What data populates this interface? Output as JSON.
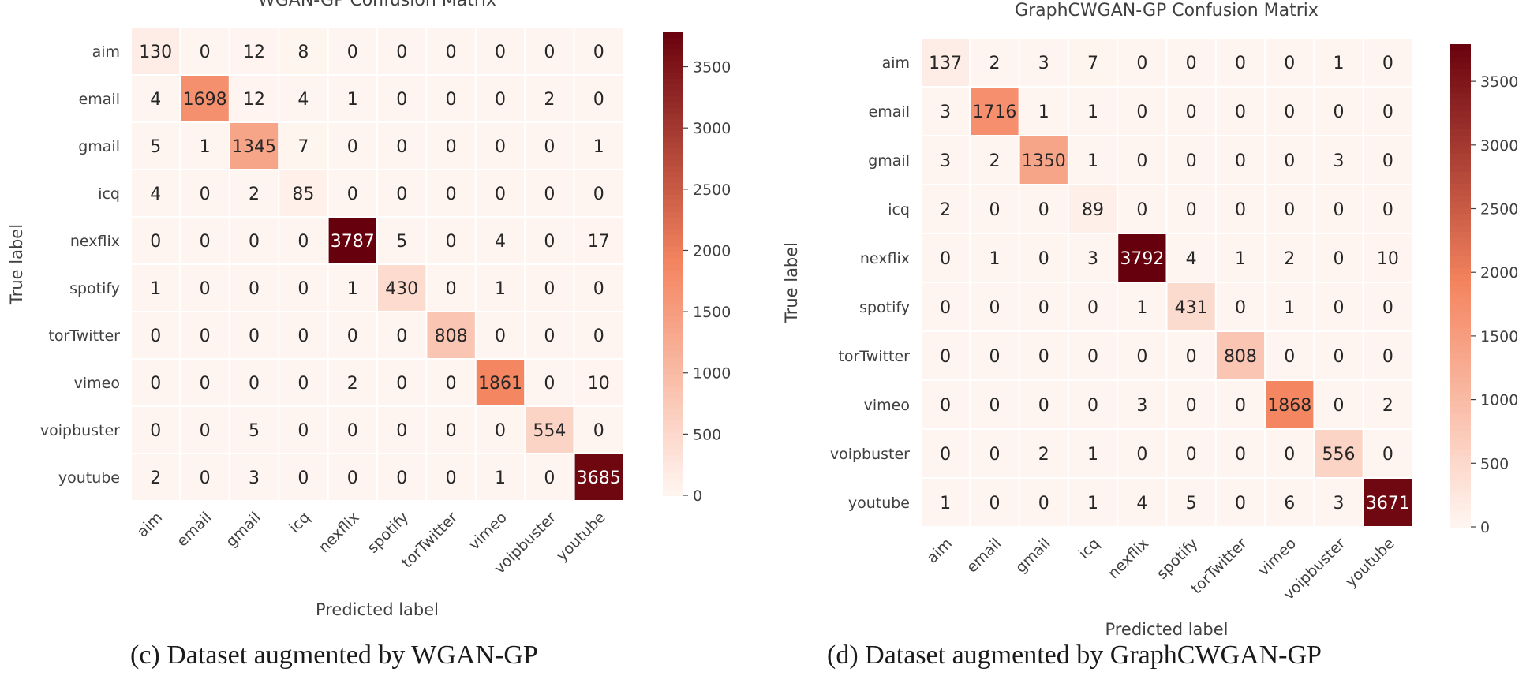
{
  "captions": {
    "left": "(c) Dataset augmented by WGAN-GP",
    "right": "(d) Dataset augmented by GraphCWGAN-GP"
  },
  "colormap": {
    "low": "#fff5f0",
    "mid": "#f4845f",
    "high": "#67000d"
  },
  "chart_data": [
    {
      "type": "heatmap",
      "title": "WGAN-GP Confusion Matrix",
      "xlabel": "Predicted label",
      "ylabel": "True label",
      "categories": [
        "aim",
        "email",
        "gmail",
        "icq",
        "nexflix",
        "spotify",
        "torTwitter",
        "vimeo",
        "voipbuster",
        "youtube"
      ],
      "matrix": [
        [
          130,
          0,
          12,
          8,
          0,
          0,
          0,
          0,
          0,
          0
        ],
        [
          4,
          1698,
          12,
          4,
          1,
          0,
          0,
          0,
          2,
          0
        ],
        [
          5,
          1,
          1345,
          7,
          0,
          0,
          0,
          0,
          0,
          1
        ],
        [
          4,
          0,
          2,
          85,
          0,
          0,
          0,
          0,
          0,
          0
        ],
        [
          0,
          0,
          0,
          0,
          3787,
          5,
          0,
          4,
          0,
          17
        ],
        [
          1,
          0,
          0,
          0,
          1,
          430,
          0,
          1,
          0,
          0
        ],
        [
          0,
          0,
          0,
          0,
          0,
          0,
          808,
          0,
          0,
          0
        ],
        [
          0,
          0,
          0,
          0,
          2,
          0,
          0,
          1861,
          0,
          10
        ],
        [
          0,
          0,
          5,
          0,
          0,
          0,
          0,
          0,
          554,
          0
        ],
        [
          2,
          0,
          3,
          0,
          0,
          0,
          0,
          1,
          0,
          3685
        ]
      ],
      "vmin": 0,
      "vmax": 3787,
      "colorbar_ticks": [
        0,
        500,
        1000,
        1500,
        2000,
        2500,
        3000,
        3500
      ]
    },
    {
      "type": "heatmap",
      "title": "GraphCWGAN-GP Confusion Matrix",
      "xlabel": "Predicted label",
      "ylabel": "True label",
      "categories": [
        "aim",
        "email",
        "gmail",
        "icq",
        "nexflix",
        "spotify",
        "torTwitter",
        "vimeo",
        "voipbuster",
        "youtube"
      ],
      "matrix": [
        [
          137,
          2,
          3,
          7,
          0,
          0,
          0,
          0,
          1,
          0
        ],
        [
          3,
          1716,
          1,
          1,
          0,
          0,
          0,
          0,
          0,
          0
        ],
        [
          3,
          2,
          1350,
          1,
          0,
          0,
          0,
          0,
          3,
          0
        ],
        [
          2,
          0,
          0,
          89,
          0,
          0,
          0,
          0,
          0,
          0
        ],
        [
          0,
          1,
          0,
          3,
          3792,
          4,
          1,
          2,
          0,
          10
        ],
        [
          0,
          0,
          0,
          0,
          1,
          431,
          0,
          1,
          0,
          0
        ],
        [
          0,
          0,
          0,
          0,
          0,
          0,
          808,
          0,
          0,
          0
        ],
        [
          0,
          0,
          0,
          0,
          3,
          0,
          0,
          1868,
          0,
          2
        ],
        [
          0,
          0,
          2,
          1,
          0,
          0,
          0,
          0,
          556,
          0
        ],
        [
          1,
          0,
          0,
          1,
          4,
          5,
          0,
          6,
          3,
          3671
        ]
      ],
      "vmin": 0,
      "vmax": 3792,
      "colorbar_ticks": [
        0,
        500,
        1000,
        1500,
        2000,
        2500,
        3000,
        3500
      ]
    }
  ]
}
